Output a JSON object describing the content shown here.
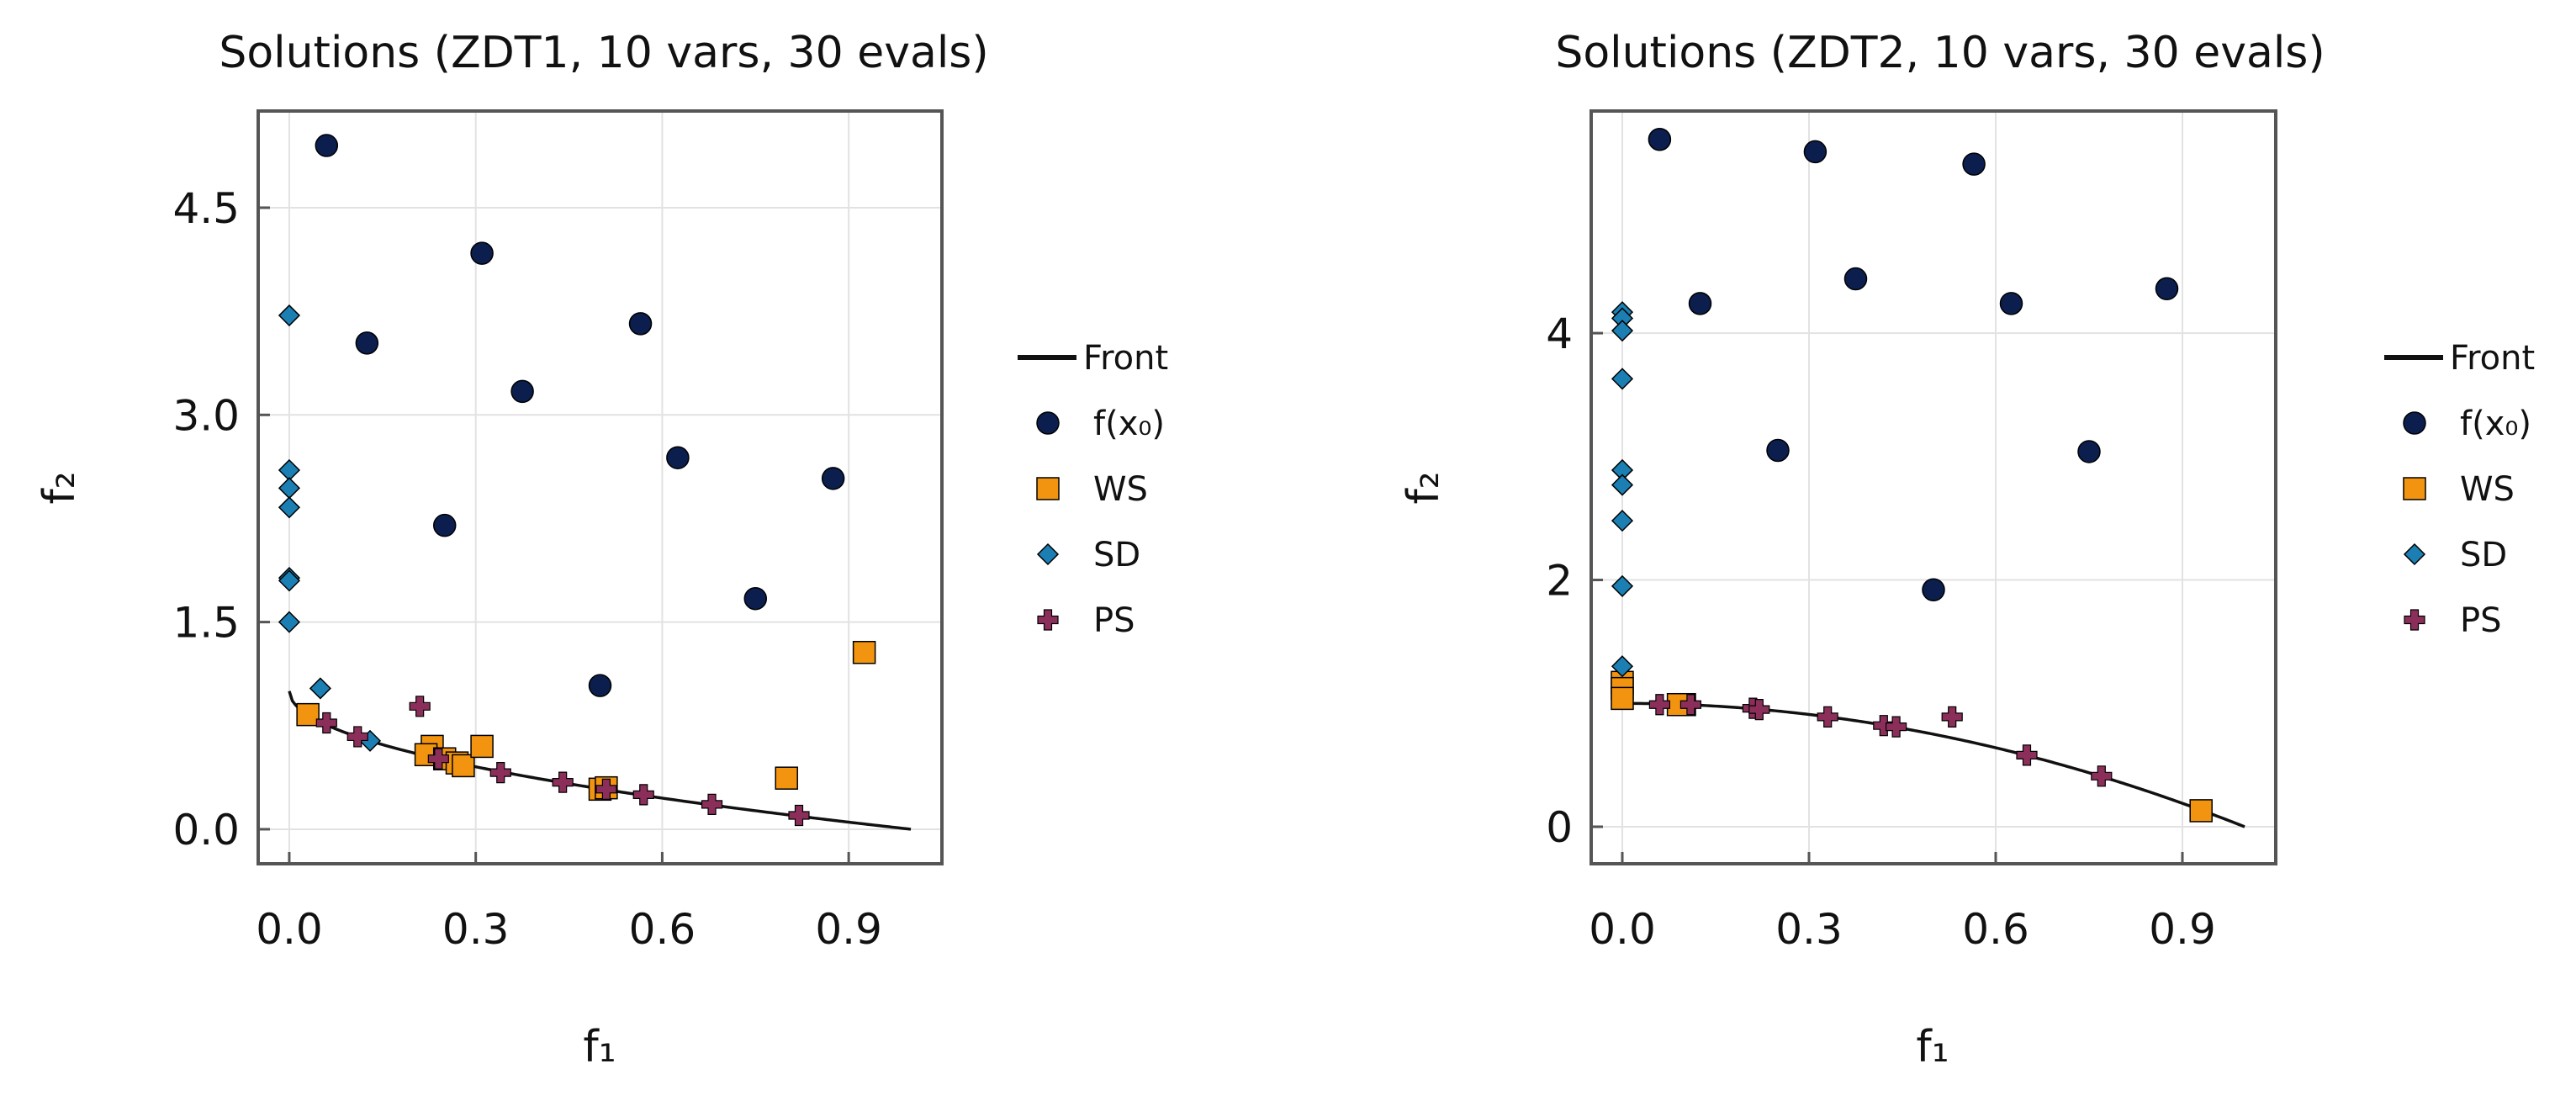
{
  "colors": {
    "front": "#111111",
    "fx0": "#0b1e4d",
    "ws": "#f2940f",
    "sd": "#1b7fb3",
    "ps": "#8b2f5a",
    "grid": "#e2e2e2",
    "frame": "#555555"
  },
  "legend": {
    "entries": [
      {
        "key": "front",
        "label": "Front",
        "marker": "line"
      },
      {
        "key": "fx0",
        "label": "f(x₀)",
        "marker": "circle"
      },
      {
        "key": "ws",
        "label": "WS",
        "marker": "square"
      },
      {
        "key": "sd",
        "label": "SD",
        "marker": "diamond"
      },
      {
        "key": "ps",
        "label": "PS",
        "marker": "cross"
      }
    ]
  },
  "chart_data": [
    {
      "type": "scatter",
      "title": "Solutions (ZDT1, 10 vars, 30 evals)",
      "xlabel": "f₁",
      "ylabel": "f₂",
      "xlim": [
        -0.05,
        1.05
      ],
      "ylim": [
        -0.25,
        5.2
      ],
      "xticks": [
        0.0,
        0.3,
        0.6,
        0.9
      ],
      "xtick_labels": [
        "0.0",
        "0.3",
        "0.6",
        "0.9"
      ],
      "yticks": [
        0.0,
        1.5,
        3.0,
        4.5
      ],
      "ytick_labels": [
        "0.0",
        "1.5",
        "3.0",
        "4.5"
      ],
      "front": "zdt1",
      "series": [
        {
          "name": "f(x₀)",
          "key": "fx0",
          "points": [
            [
              0.06,
              4.95
            ],
            [
              0.31,
              4.17
            ],
            [
              0.125,
              3.52
            ],
            [
              0.565,
              3.66
            ],
            [
              0.375,
              3.17
            ],
            [
              0.625,
              2.69
            ],
            [
              0.875,
              2.54
            ],
            [
              0.25,
              2.2
            ],
            [
              0.75,
              1.67
            ],
            [
              0.5,
              1.04
            ]
          ]
        },
        {
          "name": "WS",
          "key": "ws",
          "points": [
            [
              0.03,
              0.83
            ],
            [
              0.23,
              0.6
            ],
            [
              0.22,
              0.54
            ],
            [
              0.25,
              0.51
            ],
            [
              0.27,
              0.48
            ],
            [
              0.28,
              0.46
            ],
            [
              0.31,
              0.6
            ],
            [
              0.5,
              0.29
            ],
            [
              0.51,
              0.3
            ],
            [
              0.8,
              0.37
            ],
            [
              0.925,
              1.28
            ]
          ]
        },
        {
          "name": "SD",
          "key": "sd",
          "points": [
            [
              0.0,
              3.72
            ],
            [
              0.0,
              2.6
            ],
            [
              0.0,
              2.47
            ],
            [
              0.0,
              2.33
            ],
            [
              0.0,
              1.82
            ],
            [
              0.0,
              1.8
            ],
            [
              0.0,
              1.5
            ],
            [
              0.05,
              1.02
            ],
            [
              0.13,
              0.64
            ]
          ]
        },
        {
          "name": "PS",
          "key": "ps",
          "points": [
            [
              0.06,
              0.77
            ],
            [
              0.11,
              0.67
            ],
            [
              0.21,
              0.89
            ],
            [
              0.24,
              0.51
            ],
            [
              0.34,
              0.41
            ],
            [
              0.44,
              0.34
            ],
            [
              0.51,
              0.29
            ],
            [
              0.57,
              0.25
            ],
            [
              0.68,
              0.18
            ],
            [
              0.82,
              0.1
            ]
          ]
        }
      ]
    },
    {
      "type": "scatter",
      "title": "Solutions (ZDT2, 10 vars, 30 evals)",
      "xlabel": "f₁",
      "ylabel": "f₂",
      "xlim": [
        -0.05,
        1.05
      ],
      "ylim": [
        -0.3,
        5.8
      ],
      "xticks": [
        0.0,
        0.3,
        0.6,
        0.9
      ],
      "xtick_labels": [
        "0.0",
        "0.3",
        "0.6",
        "0.9"
      ],
      "yticks": [
        0,
        2,
        4
      ],
      "ytick_labels": [
        "0",
        "2",
        "4"
      ],
      "front": "zdt2",
      "series": [
        {
          "name": "f(x₀)",
          "key": "fx0",
          "points": [
            [
              0.06,
              5.57
            ],
            [
              0.31,
              5.47
            ],
            [
              0.565,
              5.37
            ],
            [
              0.125,
              4.24
            ],
            [
              0.375,
              4.44
            ],
            [
              0.625,
              4.24
            ],
            [
              0.875,
              4.36
            ],
            [
              0.25,
              3.05
            ],
            [
              0.75,
              3.04
            ],
            [
              0.5,
              1.92
            ]
          ]
        },
        {
          "name": "WS",
          "key": "ws",
          "points": [
            [
              0.0,
              1.17
            ],
            [
              0.0,
              1.12
            ],
            [
              0.0,
              1.04
            ],
            [
              0.1,
              0.99
            ],
            [
              0.09,
              0.99
            ],
            [
              0.93,
              0.13
            ]
          ]
        },
        {
          "name": "SD",
          "key": "sd",
          "points": [
            [
              0.0,
              4.17
            ],
            [
              0.0,
              4.12
            ],
            [
              0.0,
              4.02
            ],
            [
              0.0,
              3.63
            ],
            [
              0.0,
              2.89
            ],
            [
              0.0,
              2.77
            ],
            [
              0.0,
              2.48
            ],
            [
              0.0,
              1.95
            ],
            [
              0.0,
              1.3
            ]
          ]
        },
        {
          "name": "PS",
          "key": "ps",
          "points": [
            [
              0.06,
              0.99
            ],
            [
              0.11,
              0.99
            ],
            [
              0.21,
              0.96
            ],
            [
              0.22,
              0.95
            ],
            [
              0.33,
              0.89
            ],
            [
              0.42,
              0.82
            ],
            [
              0.44,
              0.81
            ],
            [
              0.53,
              0.89
            ],
            [
              0.65,
              0.58
            ],
            [
              0.77,
              0.41
            ]
          ]
        }
      ]
    }
  ]
}
